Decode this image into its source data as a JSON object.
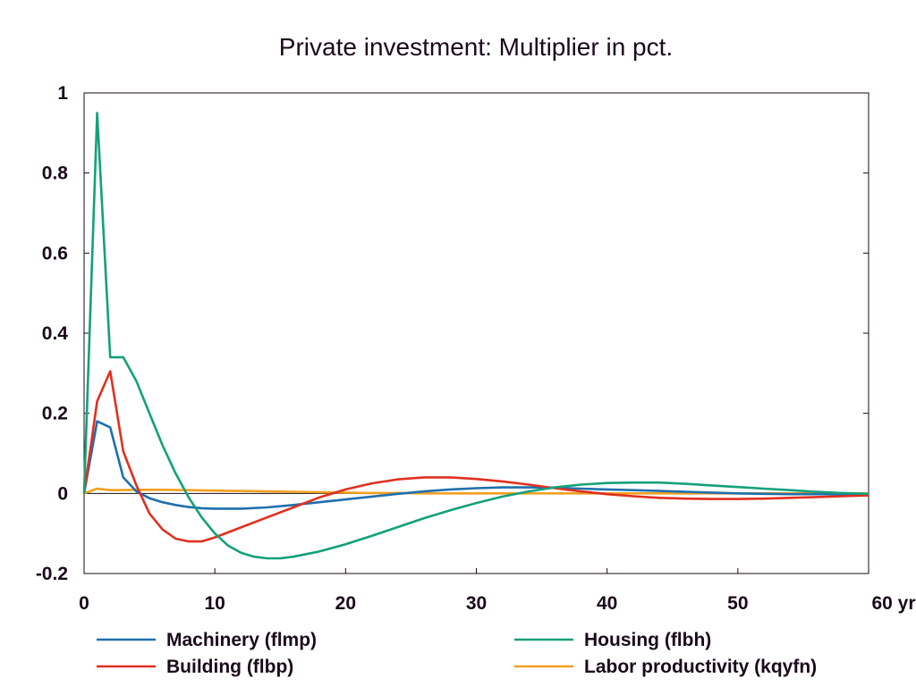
{
  "chart_data": {
    "type": "line",
    "title": "Private investment: Multiplier in pct.",
    "xlabel": "",
    "ylabel": "",
    "xlim": [
      0,
      60
    ],
    "ylim": [
      -0.2,
      1.0
    ],
    "x_ticks": [
      0,
      10,
      20,
      30,
      40,
      50,
      60
    ],
    "x_tick_labels": [
      "0",
      "10",
      "20",
      "30",
      "40",
      "50",
      "60 yr"
    ],
    "y_ticks": [
      -0.2,
      0,
      0.2,
      0.4,
      0.6,
      0.8,
      1.0
    ],
    "y_tick_labels": [
      "-0.2",
      "0",
      "0.2",
      "0.4",
      "0.6",
      "0.8",
      "1"
    ],
    "grid": false,
    "legend_position": "bottom",
    "series": [
      {
        "name": "Machinery (flmp)",
        "color": "#1f6fad",
        "points": [
          [
            0,
            0
          ],
          [
            1,
            0.18
          ],
          [
            2,
            0.165
          ],
          [
            3,
            0.04
          ],
          [
            4,
            0.005
          ],
          [
            5,
            -0.012
          ],
          [
            6,
            -0.022
          ],
          [
            7,
            -0.029
          ],
          [
            8,
            -0.034
          ],
          [
            9,
            -0.037
          ],
          [
            10,
            -0.038
          ],
          [
            12,
            -0.038
          ],
          [
            14,
            -0.035
          ],
          [
            16,
            -0.029
          ],
          [
            18,
            -0.022
          ],
          [
            20,
            -0.015
          ],
          [
            22,
            -0.008
          ],
          [
            24,
            -0.001
          ],
          [
            26,
            0.005
          ],
          [
            28,
            0.01
          ],
          [
            30,
            0.013
          ],
          [
            32,
            0.015
          ],
          [
            34,
            0.015
          ],
          [
            36,
            0.014
          ],
          [
            38,
            0.012
          ],
          [
            40,
            0.01
          ],
          [
            42,
            0.008
          ],
          [
            44,
            0.006
          ],
          [
            46,
            0.004
          ],
          [
            48,
            0.002
          ],
          [
            50,
            0
          ],
          [
            52,
            -0.001
          ],
          [
            54,
            -0.002
          ],
          [
            56,
            -0.002
          ],
          [
            58,
            -0.002
          ],
          [
            60,
            -0.002
          ]
        ]
      },
      {
        "name": "Building (flbp)",
        "color": "#e03020",
        "points": [
          [
            0,
            0
          ],
          [
            1,
            0.23
          ],
          [
            2,
            0.305
          ],
          [
            3,
            0.105
          ],
          [
            4,
            0.02
          ],
          [
            5,
            -0.05
          ],
          [
            6,
            -0.09
          ],
          [
            7,
            -0.113
          ],
          [
            8,
            -0.12
          ],
          [
            9,
            -0.12
          ],
          [
            10,
            -0.11
          ],
          [
            12,
            -0.085
          ],
          [
            14,
            -0.06
          ],
          [
            16,
            -0.035
          ],
          [
            18,
            -0.01
          ],
          [
            20,
            0.01
          ],
          [
            22,
            0.025
          ],
          [
            24,
            0.035
          ],
          [
            26,
            0.04
          ],
          [
            28,
            0.04
          ],
          [
            30,
            0.036
          ],
          [
            32,
            0.03
          ],
          [
            34,
            0.022
          ],
          [
            36,
            0.013
          ],
          [
            38,
            0.005
          ],
          [
            40,
            -0.002
          ],
          [
            42,
            -0.007
          ],
          [
            44,
            -0.011
          ],
          [
            46,
            -0.013
          ],
          [
            48,
            -0.014
          ],
          [
            50,
            -0.014
          ],
          [
            52,
            -0.013
          ],
          [
            54,
            -0.011
          ],
          [
            56,
            -0.009
          ],
          [
            58,
            -0.007
          ],
          [
            60,
            -0.005
          ]
        ]
      },
      {
        "name": "Housing (flbh)",
        "color": "#14a07a",
        "points": [
          [
            0,
            0
          ],
          [
            1,
            0.95
          ],
          [
            2,
            0.34
          ],
          [
            3,
            0.34
          ],
          [
            4,
            0.28
          ],
          [
            5,
            0.2
          ],
          [
            6,
            0.12
          ],
          [
            7,
            0.05
          ],
          [
            8,
            -0.01
          ],
          [
            9,
            -0.06
          ],
          [
            10,
            -0.1
          ],
          [
            11,
            -0.13
          ],
          [
            12,
            -0.148
          ],
          [
            13,
            -0.158
          ],
          [
            14,
            -0.162
          ],
          [
            15,
            -0.162
          ],
          [
            16,
            -0.158
          ],
          [
            18,
            -0.145
          ],
          [
            20,
            -0.127
          ],
          [
            22,
            -0.106
          ],
          [
            24,
            -0.084
          ],
          [
            26,
            -0.062
          ],
          [
            28,
            -0.042
          ],
          [
            30,
            -0.024
          ],
          [
            32,
            -0.008
          ],
          [
            34,
            0.005
          ],
          [
            36,
            0.015
          ],
          [
            38,
            0.022
          ],
          [
            40,
            0.026
          ],
          [
            42,
            0.027
          ],
          [
            44,
            0.027
          ],
          [
            46,
            0.024
          ],
          [
            48,
            0.02
          ],
          [
            50,
            0.016
          ],
          [
            52,
            0.012
          ],
          [
            54,
            0.008
          ],
          [
            56,
            0.004
          ],
          [
            58,
            0.001
          ],
          [
            60,
            -0.001
          ]
        ]
      },
      {
        "name": "Labor productivity (kqyfn)",
        "color": "#f0a020",
        "points": [
          [
            0,
            0
          ],
          [
            1,
            0.012
          ],
          [
            2,
            0.008
          ],
          [
            4,
            0.009
          ],
          [
            6,
            0.009
          ],
          [
            8,
            0.008
          ],
          [
            10,
            0.007
          ],
          [
            12,
            0.006
          ],
          [
            14,
            0.005
          ],
          [
            16,
            0.004
          ],
          [
            18,
            0.003
          ],
          [
            20,
            0.002
          ],
          [
            22,
            0.001
          ],
          [
            24,
            0.001
          ],
          [
            26,
            0
          ],
          [
            30,
            0
          ],
          [
            35,
            0
          ],
          [
            40,
            0
          ],
          [
            45,
            0
          ],
          [
            50,
            0
          ],
          [
            55,
            0
          ],
          [
            60,
            0
          ]
        ]
      }
    ]
  }
}
